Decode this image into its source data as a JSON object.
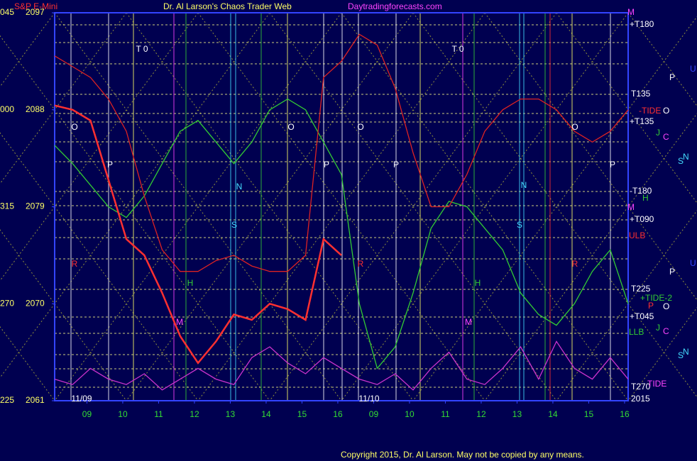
{
  "chart_data": {
    "type": "line",
    "header": [
      "S&P E-Mini",
      "Dr. Al Larson's Chaos Trader Web",
      "Daytradingforecasts.com"
    ],
    "copyright": "Copyright 2015, Dr. Al Larson. May not be copied by any means.",
    "left_labels": [
      "045",
      "000",
      "315",
      "270",
      "225"
    ],
    "ylim": [
      2061,
      2097
    ],
    "yticks": [
      2097,
      2088,
      2079,
      2070,
      2061
    ],
    "xlim": [
      0.1,
      16.1
    ],
    "xticks": [
      {
        "value": 1,
        "label": "09"
      },
      {
        "value": 2,
        "label": "10"
      },
      {
        "value": 3,
        "label": "11"
      },
      {
        "value": 4,
        "label": "12"
      },
      {
        "value": 5,
        "label": "13"
      },
      {
        "value": 6,
        "label": "14"
      },
      {
        "value": 7,
        "label": "15"
      },
      {
        "value": 8,
        "label": "16"
      },
      {
        "value": 9,
        "label": "09"
      },
      {
        "value": 10,
        "label": "10"
      },
      {
        "value": 11,
        "label": "11"
      },
      {
        "value": 12,
        "label": "12"
      },
      {
        "value": 13,
        "label": "13"
      },
      {
        "value": 14,
        "label": "14"
      },
      {
        "value": 15,
        "label": "15"
      },
      {
        "value": 16,
        "label": "16"
      }
    ],
    "x": [
      0.1,
      0.6,
      1.1,
      1.6,
      2.1,
      2.6,
      3.1,
      3.6,
      4.1,
      4.6,
      5.1,
      5.6,
      6.1,
      6.6,
      7.1,
      7.6,
      8.1,
      8.6,
      9.1,
      9.6,
      10.1,
      10.6,
      11.1,
      11.6,
      12.1,
      12.6,
      13.1,
      13.6,
      14.1,
      14.6,
      15.1,
      15.6,
      16.1
    ],
    "series": [
      {
        "color": "#33cc33",
        "values": [
          2084.7,
          2083,
          2081,
          2079,
          2078,
          2080,
          2083,
          2086,
          2087,
          2085,
          2083,
          2085,
          2088,
          2089,
          2088,
          2085,
          2082,
          2070,
          2064,
          2066,
          2071,
          2077,
          2079.5,
          2079,
          2077,
          2075,
          2071,
          2069,
          2068,
          2070,
          2073,
          2075,
          2070
        ]
      },
      {
        "color": "#dd2222",
        "values": [
          2093,
          2092,
          2091,
          2089,
          2086,
          2080,
          2075,
          2073,
          2073,
          2074,
          2074.5,
          2073.5,
          2073,
          2073,
          2074.5,
          2091,
          2092.5,
          2095,
          2094,
          2090,
          2084,
          2079,
          2079,
          2082,
          2086,
          2088,
          2089,
          2089,
          2088,
          2086,
          2085,
          2086,
          2088
        ]
      },
      {
        "color": "#cc33cc",
        "values": [
          2063,
          2062.5,
          2064,
          2063,
          2062.5,
          2063.5,
          2062,
          2063,
          2064,
          2063,
          2062.5,
          2065,
          2066,
          2064.5,
          2063.5,
          2065,
          2064,
          2063,
          2062.5,
          2063.5,
          2062,
          2064,
          2065.5,
          2063,
          2062.5,
          2064,
          2066,
          2063,
          2066.5,
          2064,
          2063,
          2065,
          2063
        ]
      },
      {
        "color": "#ff3030",
        "values": [
          2088.4,
          2088,
          2087,
          2081.5,
          2076,
          2074.5,
          2071,
          2067,
          2064.5,
          2066.5,
          2069,
          2068.5,
          2070,
          2069.5,
          2068.5,
          2076,
          2074.5,
          null,
          null,
          null,
          null,
          null,
          null,
          null,
          null,
          null,
          null,
          null,
          null,
          null,
          null,
          null,
          null
        ]
      }
    ],
    "annotations": [
      "T 0",
      "T 0",
      "O",
      "O",
      "O",
      "O",
      "P",
      "P",
      "P",
      "P",
      "N",
      "N",
      "S",
      "S",
      "H",
      "H",
      "R",
      "R",
      "R",
      "M",
      "M",
      "11/09",
      "11/10"
    ],
    "right_labels": [
      "+T180",
      "M",
      "T135",
      "-TIDE",
      "O",
      "+T135",
      "J",
      "C",
      "S",
      "N",
      "-T180",
      "H",
      "M",
      "+T090",
      "ULB",
      "P",
      "U",
      "P",
      "U",
      "T225",
      "+TIDE-2",
      "P",
      "O",
      "+T045",
      "J",
      "C",
      "LLB",
      "S",
      "N",
      "T270",
      "TIDE",
      "2015"
    ]
  }
}
